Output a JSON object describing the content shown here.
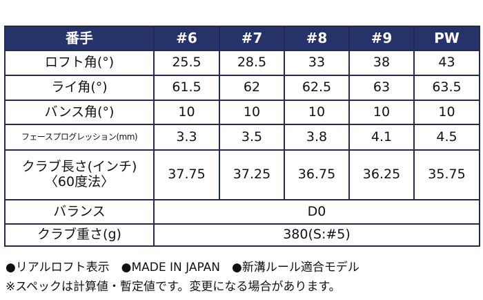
{
  "table": {
    "header": [
      "番手",
      "#6",
      "#7",
      "#8",
      "#9",
      "PW"
    ],
    "rows": [
      {
        "label": [
          "ロフト角(°)"
        ],
        "values": [
          "25.5",
          "28.5",
          "33",
          "38",
          "43"
        ]
      },
      {
        "label": [
          "ライ角(°)"
        ],
        "values": [
          "61.5",
          "62",
          "62.5",
          "63",
          "63.5"
        ]
      },
      {
        "label": [
          "バンス角(°)"
        ],
        "values": [
          "10",
          "10",
          "10",
          "10",
          "10"
        ]
      },
      {
        "label": [
          "フェースプログレッション(mm)"
        ],
        "values": [
          "3.3",
          "3.5",
          "3.8",
          "4.1",
          "4.5"
        ]
      },
      {
        "label": [
          "クラブ長さ(インチ)",
          "〈60度法〉"
        ],
        "values": [
          "37.75",
          "37.25",
          "36.75",
          "36.25",
          "35.75"
        ]
      },
      {
        "label": [
          "バランス"
        ],
        "values": [
          "D0"
        ]
      },
      {
        "label": [
          "クラブ重さ(g)"
        ],
        "values": [
          "380(S:#5)"
        ]
      }
    ]
  },
  "notes": [
    "●リアルロフト表示　●MADE IN JAPAN　●新溝ルール適合モデル",
    "※スペックは計算値・暫定値です。変更になる場合があります。"
  ]
}
